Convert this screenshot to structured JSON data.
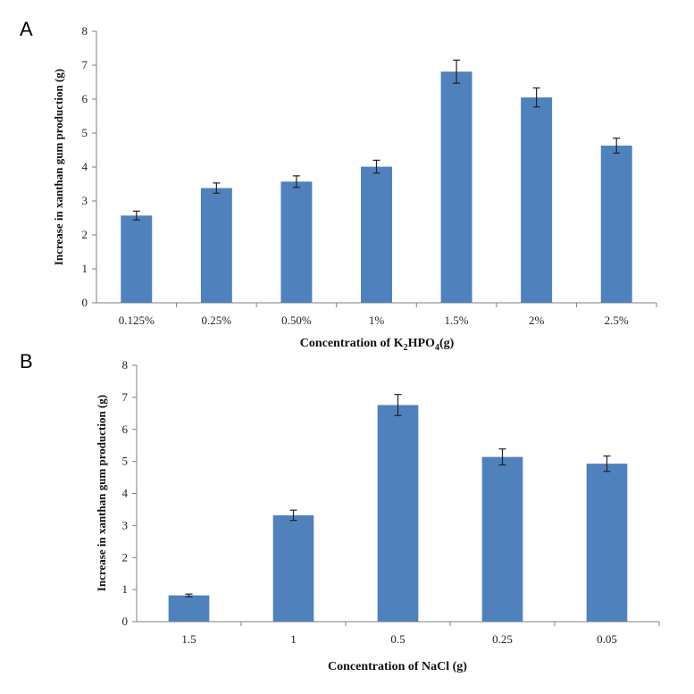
{
  "chart_data": [
    {
      "panel_label": "A",
      "type": "bar",
      "categories": [
        "0.125%",
        "0.25%",
        "0.50%",
        "1%",
        "1.5%",
        "2%",
        "2.5%"
      ],
      "values": [
        2.57,
        3.38,
        3.57,
        4.01,
        6.81,
        6.05,
        4.63
      ],
      "errors": [
        0.13,
        0.15,
        0.17,
        0.19,
        0.34,
        0.28,
        0.22
      ],
      "xlabel_prefix": "Concentration of K",
      "xlabel_sub1": "2",
      "xlabel_mid": "HPO",
      "xlabel_sub2": "4",
      "xlabel_suffix": "(g)",
      "ylabel": "Increase in xanthan gum production (g)",
      "ylim": [
        0,
        8
      ],
      "yticks": [
        "0",
        "1",
        "2",
        "3",
        "4",
        "5",
        "6",
        "7",
        "8"
      ],
      "grid": false,
      "bar_color": "#4f81bd"
    },
    {
      "panel_label": "B",
      "type": "bar",
      "categories": [
        "1.5",
        "1",
        "0.5",
        "0.25",
        "0.05"
      ],
      "values": [
        0.82,
        3.32,
        6.76,
        5.14,
        4.93
      ],
      "errors": [
        0.04,
        0.16,
        0.33,
        0.25,
        0.24
      ],
      "xlabel": "Concentration of NaCl (g)",
      "ylabel": "Increase in xanthan gum production (g)",
      "ylim": [
        0,
        8
      ],
      "yticks": [
        "0",
        "1",
        "2",
        "3",
        "4",
        "5",
        "6",
        "7",
        "8"
      ],
      "grid": false,
      "bar_color": "#4f81bd"
    }
  ]
}
